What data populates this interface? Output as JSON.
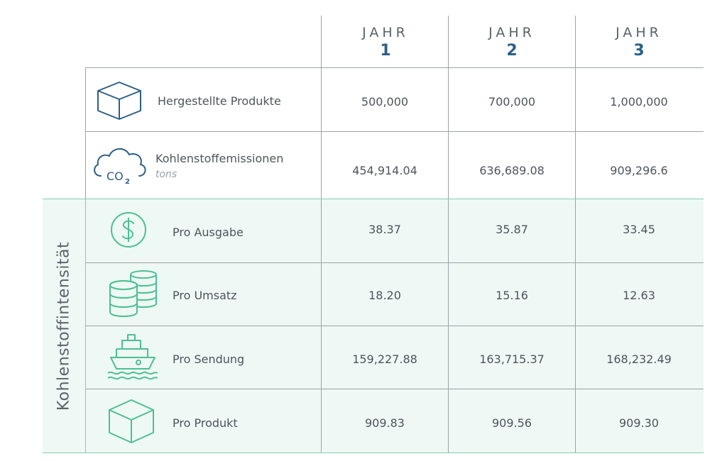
{
  "header": {
    "years": [
      {
        "word": "JAHR",
        "num": "1"
      },
      {
        "word": "JAHR",
        "num": "2"
      },
      {
        "word": "JAHR",
        "num": "3"
      }
    ]
  },
  "rows": {
    "produced": {
      "label": "Hergestellte Produkte",
      "icon": "box-icon",
      "values": [
        "500,000",
        "700,000",
        "1,000,000"
      ]
    },
    "emissions": {
      "label": "Kohlenstoffemissionen",
      "unit": "tons",
      "icon": "co2-cloud-icon",
      "values": [
        "454,914.04",
        "636,689.08",
        "909,296.6"
      ]
    }
  },
  "intensity": {
    "title": "Kohlenstoffintensität",
    "rows": [
      {
        "label": "Pro Ausgabe",
        "icon": "dollar-coin-icon",
        "values": [
          "38.37",
          "35.87",
          "33.45"
        ]
      },
      {
        "label": "Pro Umsatz",
        "icon": "coin-stack-icon",
        "values": [
          "18.20",
          "15.16",
          "12.63"
        ]
      },
      {
        "label": "Pro Sendung",
        "icon": "ship-icon",
        "values": [
          "159,227.88",
          "163,715.37",
          "168,232.49"
        ]
      },
      {
        "label": "Pro Produkt",
        "icon": "box-icon",
        "values": [
          "909.83",
          "909.56",
          "909.30"
        ]
      }
    ]
  },
  "colors": {
    "blue": "#2d5f86",
    "green": "#4cbf94",
    "band": "#eef8f4"
  }
}
